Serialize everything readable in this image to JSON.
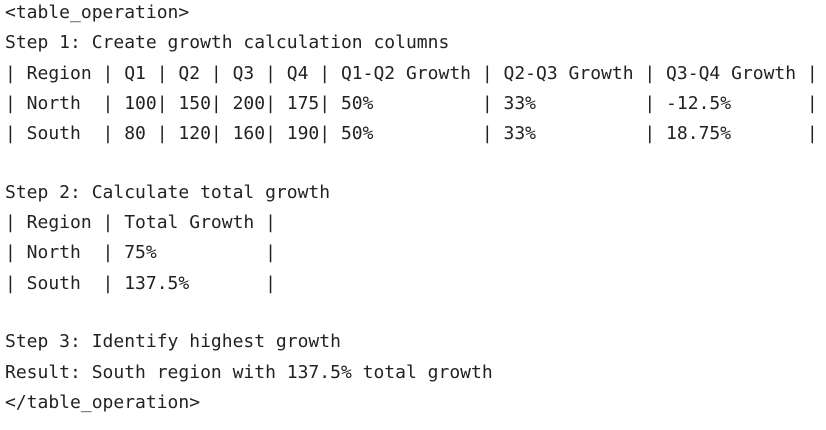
{
  "document": {
    "open_tag": "<table_operation>",
    "blocks": [
      [
        "Step 1: Create growth calculation columns",
        "| Region | Q1 | Q2 | Q3 | Q4 | Q1-Q2 Growth | Q2-Q3 Growth | Q3-Q4 Growth |",
        "| North  | 100| 150| 200| 175| 50%          | 33%          | -12.5%       |",
        "| South  | 80 | 120| 160| 190| 50%          | 33%          | 18.75%       |"
      ],
      [
        "Step 2: Calculate total growth",
        "| Region | Total Growth |",
        "| North  | 75%          |",
        "| South  | 137.5%       |"
      ],
      [
        "Step 3: Identify highest growth",
        "Result: South region with 137.5% total growth"
      ]
    ],
    "close_tag": "</table_operation>"
  }
}
